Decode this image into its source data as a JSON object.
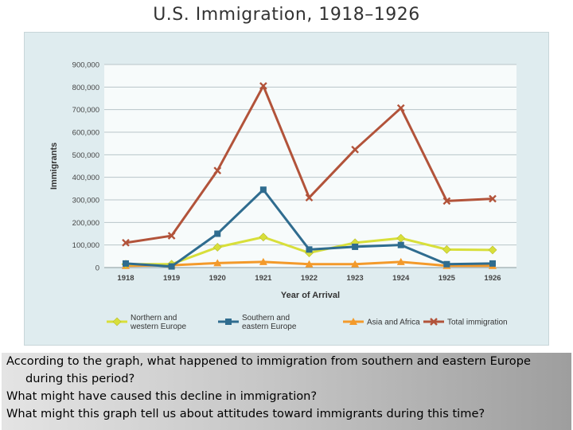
{
  "chart_data": {
    "type": "line",
    "title": "U.S. Immigration, 1918–1926",
    "xlabel": "Year of Arrival",
    "ylabel": "Immigrants",
    "categories": [
      "1918",
      "1919",
      "1920",
      "1921",
      "1922",
      "1923",
      "1924",
      "1925",
      "1926"
    ],
    "ylim": [
      0,
      900000
    ],
    "y_ticks": [
      {
        "value": 0,
        "label": "0"
      },
      {
        "value": 100000,
        "label": "100,000"
      },
      {
        "value": 200000,
        "label": "200,000"
      },
      {
        "value": 300000,
        "label": "300,000"
      },
      {
        "value": 400000,
        "label": "400,000"
      },
      {
        "value": 500000,
        "label": "500,000"
      },
      {
        "value": 600000,
        "label": "600,000"
      },
      {
        "value": 700000,
        "label": "700,000"
      },
      {
        "value": 800000,
        "label": "800,000"
      },
      {
        "value": 900000,
        "label": "900,000"
      }
    ],
    "grid": true,
    "legend_position": "bottom",
    "series": [
      {
        "name": "Northern and western Europe",
        "color": "#d8df3a",
        "marker": "diamond",
        "values": [
          15000,
          15000,
          90000,
          135000,
          65000,
          110000,
          130000,
          80000,
          78000
        ]
      },
      {
        "name": "Southern and eastern Europe",
        "color": "#2f6c8f",
        "marker": "square",
        "values": [
          18000,
          5000,
          150000,
          345000,
          80000,
          92000,
          100000,
          15000,
          18000
        ]
      },
      {
        "name": "Asia and Africa",
        "color": "#f39a2b",
        "marker": "triangle",
        "values": [
          8000,
          10000,
          20000,
          25000,
          15000,
          15000,
          25000,
          8000,
          8000
        ]
      },
      {
        "name": "Total immigration",
        "color": "#b2533a",
        "marker": "x",
        "values": [
          110000,
          141000,
          430000,
          805000,
          310000,
          523000,
          707000,
          295000,
          305000
        ]
      }
    ]
  },
  "caption": {
    "questions": [
      "According to the graph, what happened to immigration from southern and eastern Europe during this period?",
      "What might have caused this decline in immigration?",
      "What might this graph tell us about attitudes toward immigrants during this time?"
    ]
  }
}
